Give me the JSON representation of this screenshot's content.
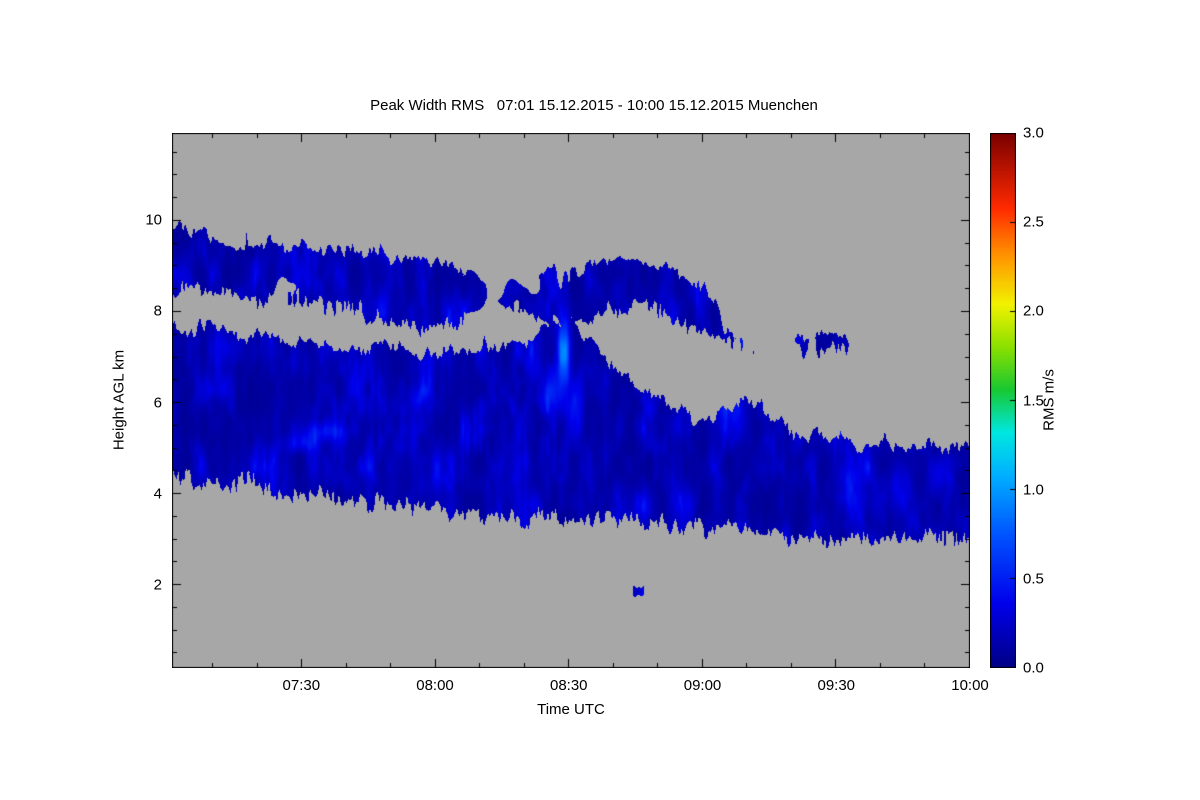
{
  "chart_data": {
    "type": "heatmap",
    "title": "Peak Width RMS   07:01 15.12.2015 - 10:00 15.12.2015 Muenchen",
    "measurement": "Peak Width RMS",
    "time_range": "07:01 15.12.2015 - 10:00 15.12.2015",
    "station": "Muenchen",
    "xlabel": "Time UTC",
    "ylabel": "Height AGL km",
    "colorbar_label": "RMS m/s",
    "x_axis": {
      "label": "Time UTC",
      "range_minutes": [
        0,
        179
      ],
      "start_time": "07:01",
      "end_time": "10:00",
      "ticks": [
        {
          "label": "07:30",
          "minutes": 29
        },
        {
          "label": "08:00",
          "minutes": 59
        },
        {
          "label": "08:30",
          "minutes": 89
        },
        {
          "label": "09:00",
          "minutes": 119
        },
        {
          "label": "09:30",
          "minutes": 149
        },
        {
          "label": "10:00",
          "minutes": 179
        }
      ]
    },
    "y_axis": {
      "label": "Height AGL km",
      "range_km": [
        0.18,
        11.91
      ],
      "ticks": [
        {
          "label": "2",
          "km": 2
        },
        {
          "label": "4",
          "km": 4
        },
        {
          "label": "6",
          "km": 6
        },
        {
          "label": "8",
          "km": 8
        },
        {
          "label": "10",
          "km": 10
        }
      ]
    },
    "colorbar": {
      "label": "RMS m/s",
      "min": 0.0,
      "max": 3.0,
      "ticks": [
        {
          "label": "0.0",
          "value": 0.0
        },
        {
          "label": "0.5",
          "value": 0.5
        },
        {
          "label": "1.0",
          "value": 1.0
        },
        {
          "label": "1.5",
          "value": 1.5
        },
        {
          "label": "2.0",
          "value": 2.0
        },
        {
          "label": "2.5",
          "value": 2.5
        },
        {
          "label": "3.0",
          "value": 3.0
        }
      ],
      "colormap_stops": [
        [
          0.0,
          "#000085"
        ],
        [
          0.12,
          "#0000eb"
        ],
        [
          0.25,
          "#0055ff"
        ],
        [
          0.36,
          "#00b0ff"
        ],
        [
          0.44,
          "#00e8e0"
        ],
        [
          0.52,
          "#18c832"
        ],
        [
          0.6,
          "#8ce000"
        ],
        [
          0.68,
          "#f2f200"
        ],
        [
          0.77,
          "#ff9500"
        ],
        [
          0.86,
          "#ff2a00"
        ],
        [
          1.0,
          "#7a0000"
        ]
      ]
    },
    "no_data_color": "#a7a7a7",
    "frame_color": "#000000",
    "value_summary": "Returns mostly 0.0-0.5 m/s (dark blue) with isolated brighter streaks up to ~1.0 m/s",
    "cloud_regions": [
      {
        "name": "upper-cloud-layer",
        "seed": 1,
        "edge_noise": 0.45,
        "points": [
          [
            0,
            8.55,
            9.85,
            0.88
          ],
          [
            8,
            8.45,
            9.7,
            0.8
          ],
          [
            16,
            8.3,
            9.55,
            0.6
          ],
          [
            26,
            8.15,
            9.45,
            0.78
          ],
          [
            38,
            7.95,
            9.35,
            0.85
          ],
          [
            50,
            7.75,
            9.2,
            0.82
          ],
          [
            60,
            7.6,
            9.0,
            0.7
          ],
          [
            68,
            7.6,
            9.4,
            0.4
          ],
          [
            78,
            7.75,
            9.3,
            0.5
          ],
          [
            88,
            7.6,
            8.75,
            0.72
          ],
          [
            96,
            7.95,
            9.15,
            0.78
          ],
          [
            104,
            8.15,
            9.3,
            0.8
          ],
          [
            112,
            7.9,
            8.95,
            0.72
          ],
          [
            119,
            7.6,
            8.6,
            0.66
          ],
          [
            125,
            7.0,
            7.75,
            0.6
          ],
          [
            134,
            7.05,
            7.65,
            0.55
          ],
          [
            142,
            7.15,
            7.6,
            0.5
          ],
          [
            150,
            7.2,
            7.55,
            0.55
          ],
          [
            157,
            7.2,
            7.45,
            0.35
          ]
        ]
      },
      {
        "name": "mid-cloud-layer",
        "seed": 2,
        "edge_noise": 0.5,
        "points": [
          [
            0,
            4.35,
            7.7,
            0.93
          ],
          [
            12,
            4.2,
            7.55,
            0.91
          ],
          [
            24,
            4.05,
            7.4,
            0.9
          ],
          [
            36,
            3.95,
            7.3,
            0.88
          ],
          [
            48,
            3.8,
            7.2,
            0.86
          ],
          [
            60,
            3.6,
            7.1,
            0.86
          ],
          [
            72,
            3.5,
            7.2,
            0.89
          ],
          [
            82,
            3.45,
            7.5,
            0.9
          ],
          [
            89,
            3.45,
            7.95,
            0.9
          ],
          [
            96,
            3.4,
            7.2,
            0.88
          ],
          [
            104,
            3.35,
            6.4,
            0.86
          ],
          [
            112,
            3.3,
            5.85,
            0.86
          ],
          [
            120,
            3.2,
            5.6,
            0.87
          ],
          [
            128,
            3.15,
            6.15,
            0.86
          ],
          [
            136,
            3.1,
            5.5,
            0.88
          ],
          [
            146,
            3.0,
            5.25,
            0.9
          ],
          [
            158,
            3.0,
            5.1,
            0.9
          ],
          [
            168,
            2.95,
            5.05,
            0.9
          ],
          [
            179,
            2.95,
            5.0,
            0.9
          ]
        ]
      },
      {
        "name": "low-isolated-echo",
        "seed": 3,
        "edge_noise": 0.12,
        "points": [
          [
            103.5,
            1.72,
            1.95,
            0.97
          ],
          [
            105.8,
            1.72,
            1.95,
            0.97
          ]
        ]
      }
    ],
    "bright_streaks": [
      {
        "t": 88,
        "h": 7.1,
        "dt": 1.4,
        "dh": 0.85,
        "v": 0.65
      },
      {
        "t": 86,
        "h": 6.2,
        "dt": 1.8,
        "dh": 0.5,
        "v": 0.3
      },
      {
        "t": 90,
        "h": 5.8,
        "dt": 1.5,
        "dh": 0.6,
        "v": 0.25
      },
      {
        "t": 34,
        "h": 5.35,
        "dt": 5.0,
        "dh": 0.22,
        "v": 0.3
      },
      {
        "t": 29,
        "h": 5.1,
        "dt": 3.5,
        "dh": 0.18,
        "v": 0.22
      },
      {
        "t": 55,
        "h": 6.1,
        "dt": 2.0,
        "dh": 0.3,
        "v": 0.2
      },
      {
        "t": 12,
        "h": 7.2,
        "dt": 2.5,
        "dh": 0.35,
        "v": 0.2
      },
      {
        "t": 125,
        "h": 5.7,
        "dt": 3.5,
        "dh": 0.45,
        "v": 0.25
      },
      {
        "t": 152,
        "h": 4.3,
        "dt": 3.0,
        "dh": 0.5,
        "v": 0.22
      },
      {
        "t": 163,
        "h": 4.1,
        "dt": 2.5,
        "dh": 0.55,
        "v": 0.22
      },
      {
        "t": 172,
        "h": 4.4,
        "dt": 2.0,
        "dh": 0.4,
        "v": 0.2
      }
    ]
  }
}
